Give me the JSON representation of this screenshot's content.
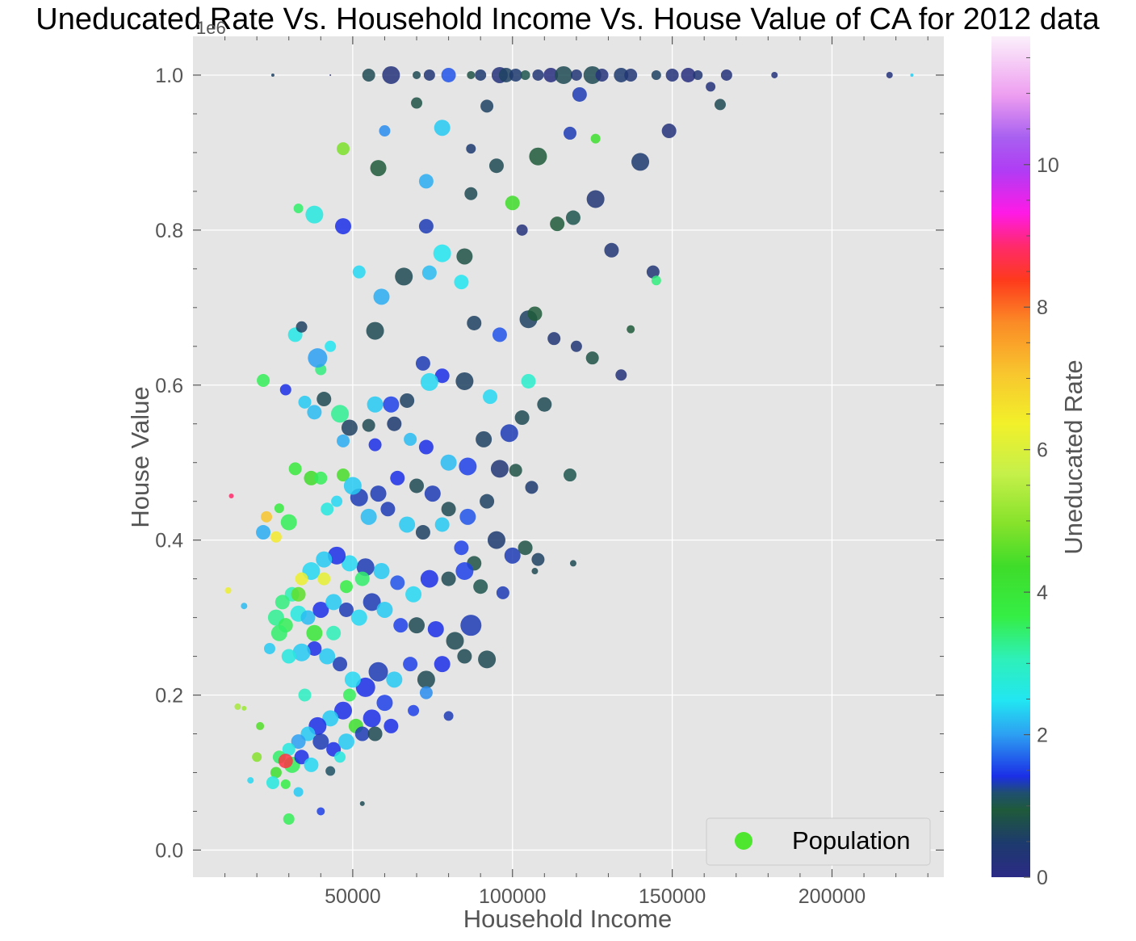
{
  "chart_data": {
    "type": "scatter",
    "title": "Uneducated Rate Vs. Household Income Vs. House Value of CA for 2012 data",
    "xlabel": "Household Income",
    "ylabel": "House Value",
    "y_offset_label": "1e6",
    "xlim": [
      0,
      235000
    ],
    "ylim": [
      -0.035,
      1.05
    ],
    "x_ticks": [
      50000,
      100000,
      150000,
      200000
    ],
    "x_tick_labels": [
      "50000",
      "100000",
      "150000",
      "200000"
    ],
    "y_ticks": [
      0.0,
      0.2,
      0.4,
      0.6,
      0.8,
      1.0
    ],
    "y_tick_labels": [
      "0.0",
      "0.2",
      "0.4",
      "0.6",
      "0.8",
      "1.0"
    ],
    "grid": true,
    "legend": {
      "position": "bottom-right",
      "entries": [
        "Population"
      ],
      "marker_color": "#4ee62f"
    },
    "colorbar": {
      "label": "Uneducated Rate",
      "range": [
        0,
        11.8
      ],
      "ticks": [
        0,
        2,
        4,
        6,
        8,
        10
      ],
      "tick_labels": [
        "0",
        "2",
        "4",
        "6",
        "8",
        "10"
      ],
      "colormap": "gist_ncar"
    },
    "encoding": {
      "x": "Household Income",
      "y": "House Value",
      "color": "Uneducated Rate",
      "size": "Population"
    },
    "points_note": "approximately 1500 points; representative sample listed",
    "points": [
      [
        25000,
        1.0,
        0.5,
        2
      ],
      [
        43000,
        1.0,
        0.1,
        1
      ],
      [
        55000,
        1.0,
        0.6,
        8
      ],
      [
        62000,
        1.0,
        0.2,
        11
      ],
      [
        70000,
        1.0,
        0.6,
        5
      ],
      [
        74000,
        1.0,
        0.3,
        7
      ],
      [
        80000,
        1.0,
        1.5,
        9
      ],
      [
        87000,
        1.0,
        0.7,
        5
      ],
      [
        90000,
        1.0,
        0.4,
        7
      ],
      [
        96000,
        1.0,
        0.2,
        10
      ],
      [
        98000,
        1.0,
        0.5,
        9
      ],
      [
        101000,
        1.0,
        0.4,
        8
      ],
      [
        104000,
        1.0,
        0.9,
        6
      ],
      [
        108000,
        1.0,
        0.3,
        7
      ],
      [
        112000,
        1.0,
        0.1,
        9
      ],
      [
        116000,
        1.0,
        0.6,
        11
      ],
      [
        120000,
        1.0,
        0.3,
        7
      ],
      [
        125000,
        1.0,
        0.6,
        11
      ],
      [
        128000,
        1.0,
        0.2,
        8
      ],
      [
        134000,
        1.0,
        0.4,
        9
      ],
      [
        137000,
        1.0,
        0.3,
        8
      ],
      [
        145000,
        1.0,
        0.5,
        6
      ],
      [
        150000,
        1.0,
        0.2,
        8
      ],
      [
        155000,
        1.0,
        0.1,
        9
      ],
      [
        158000,
        1.0,
        0.3,
        6
      ],
      [
        167000,
        1.0,
        0.2,
        7
      ],
      [
        182000,
        1.0,
        0.2,
        4
      ],
      [
        218000,
        1.0,
        0.2,
        4
      ],
      [
        225000,
        1.0,
        2.2,
        2
      ],
      [
        58000,
        0.88,
        0.8,
        10
      ],
      [
        47000,
        0.905,
        4.9,
        8
      ],
      [
        60000,
        0.928,
        1.8,
        7
      ],
      [
        73000,
        0.863,
        2.0,
        9
      ],
      [
        78000,
        0.932,
        2.2,
        10
      ],
      [
        87000,
        0.905,
        0.4,
        6
      ],
      [
        95000,
        0.883,
        0.6,
        9
      ],
      [
        108000,
        0.895,
        0.8,
        11
      ],
      [
        118000,
        0.925,
        1.2,
        8
      ],
      [
        126000,
        0.918,
        4.2,
        6
      ],
      [
        140000,
        0.888,
        0.4,
        11
      ],
      [
        149000,
        0.928,
        0.2,
        9
      ],
      [
        165000,
        0.962,
        0.6,
        7
      ],
      [
        162000,
        0.985,
        0.2,
        6
      ],
      [
        121000,
        0.975,
        1.2,
        9
      ],
      [
        92000,
        0.96,
        0.5,
        8
      ],
      [
        70000,
        0.964,
        0.7,
        7
      ],
      [
        33000,
        0.828,
        3.4,
        6
      ],
      [
        38000,
        0.82,
        2.6,
        11
      ],
      [
        47000,
        0.805,
        1.3,
        10
      ],
      [
        73000,
        0.805,
        1.2,
        9
      ],
      [
        100000,
        0.835,
        4.3,
        9
      ],
      [
        87000,
        0.847,
        0.6,
        8
      ],
      [
        119000,
        0.816,
        0.9,
        9
      ],
      [
        126000,
        0.84,
        0.3,
        11
      ],
      [
        131000,
        0.774,
        0.3,
        9
      ],
      [
        144000,
        0.746,
        0.3,
        8
      ],
      [
        145000,
        0.735,
        3.3,
        6
      ],
      [
        114000,
        0.808,
        0.8,
        9
      ],
      [
        103000,
        0.8,
        0.2,
        7
      ],
      [
        78000,
        0.77,
        2.4,
        11
      ],
      [
        85000,
        0.766,
        0.7,
        10
      ],
      [
        32000,
        0.665,
        2.5,
        9
      ],
      [
        34000,
        0.675,
        0.5,
        7
      ],
      [
        40000,
        0.62,
        3.3,
        7
      ],
      [
        43000,
        0.65,
        2.4,
        7
      ],
      [
        39000,
        0.635,
        1.9,
        12
      ],
      [
        22000,
        0.606,
        3.5,
        8
      ],
      [
        29000,
        0.594,
        1.3,
        7
      ],
      [
        35000,
        0.578,
        2.2,
        8
      ],
      [
        38000,
        0.565,
        2.1,
        9
      ],
      [
        41000,
        0.582,
        0.6,
        9
      ],
      [
        46000,
        0.563,
        3.2,
        11
      ],
      [
        47000,
        0.528,
        2.0,
        8
      ],
      [
        59000,
        0.714,
        2.0,
        10
      ],
      [
        57000,
        0.67,
        0.6,
        11
      ],
      [
        52000,
        0.746,
        2.3,
        8
      ],
      [
        66000,
        0.74,
        0.6,
        11
      ],
      [
        74000,
        0.745,
        2.1,
        9
      ],
      [
        84000,
        0.733,
        2.4,
        9
      ],
      [
        88000,
        0.68,
        0.5,
        9
      ],
      [
        96000,
        0.665,
        1.5,
        9
      ],
      [
        105000,
        0.685,
        0.5,
        11
      ],
      [
        107000,
        0.692,
        0.8,
        9
      ],
      [
        113000,
        0.66,
        0.3,
        8
      ],
      [
        120000,
        0.65,
        0.3,
        7
      ],
      [
        125000,
        0.635,
        0.7,
        8
      ],
      [
        134000,
        0.613,
        0.2,
        7
      ],
      [
        137000,
        0.672,
        0.8,
        5
      ],
      [
        105000,
        0.605,
        2.8,
        9
      ],
      [
        110000,
        0.575,
        0.6,
        9
      ],
      [
        118000,
        0.484,
        0.9,
        8
      ],
      [
        99000,
        0.538,
        1.2,
        11
      ],
      [
        103000,
        0.558,
        0.6,
        9
      ],
      [
        106000,
        0.468,
        0.4,
        8
      ],
      [
        93000,
        0.585,
        2.3,
        9
      ],
      [
        85000,
        0.605,
        0.5,
        11
      ],
      [
        78000,
        0.612,
        1.3,
        9
      ],
      [
        74000,
        0.604,
        2.3,
        11
      ],
      [
        72000,
        0.628,
        1.2,
        9
      ],
      [
        67000,
        0.58,
        0.5,
        9
      ],
      [
        62000,
        0.575,
        1.4,
        10
      ],
      [
        57000,
        0.575,
        2.2,
        10
      ],
      [
        55000,
        0.548,
        0.6,
        8
      ],
      [
        49000,
        0.545,
        0.5,
        10
      ],
      [
        57000,
        0.523,
        1.3,
        8
      ],
      [
        63000,
        0.55,
        0.4,
        9
      ],
      [
        68000,
        0.53,
        2.1,
        8
      ],
      [
        73000,
        0.52,
        1.3,
        9
      ],
      [
        80000,
        0.5,
        2.1,
        10
      ],
      [
        86000,
        0.495,
        1.4,
        11
      ],
      [
        91000,
        0.53,
        0.5,
        10
      ],
      [
        96000,
        0.492,
        0.3,
        11
      ],
      [
        101000,
        0.49,
        0.7,
        8
      ],
      [
        92000,
        0.45,
        0.5,
        9
      ],
      [
        86000,
        0.43,
        1.5,
        10
      ],
      [
        80000,
        0.44,
        0.6,
        9
      ],
      [
        75000,
        0.46,
        1.2,
        10
      ],
      [
        70000,
        0.47,
        0.6,
        9
      ],
      [
        64000,
        0.48,
        1.3,
        9
      ],
      [
        58000,
        0.46,
        1.2,
        10
      ],
      [
        52000,
        0.455,
        1.2,
        11
      ],
      [
        47000,
        0.484,
        4.4,
        8
      ],
      [
        50000,
        0.47,
        2.2,
        11
      ],
      [
        55000,
        0.43,
        2.1,
        10
      ],
      [
        61000,
        0.44,
        1.2,
        9
      ],
      [
        67000,
        0.42,
        2.2,
        10
      ],
      [
        72000,
        0.41,
        0.5,
        9
      ],
      [
        78000,
        0.42,
        2.2,
        9
      ],
      [
        84000,
        0.39,
        1.4,
        9
      ],
      [
        88000,
        0.37,
        0.7,
        9
      ],
      [
        95000,
        0.4,
        0.4,
        11
      ],
      [
        100000,
        0.38,
        1.2,
        10
      ],
      [
        104000,
        0.39,
        0.7,
        9
      ],
      [
        108000,
        0.375,
        0.5,
        8
      ],
      [
        119000,
        0.37,
        0.6,
        4
      ],
      [
        107000,
        0.36,
        0.6,
        4
      ],
      [
        97000,
        0.332,
        1.2,
        8
      ],
      [
        90000,
        0.34,
        0.9,
        9
      ],
      [
        85000,
        0.36,
        1.4,
        11
      ],
      [
        80000,
        0.35,
        0.6,
        9
      ],
      [
        74000,
        0.35,
        1.3,
        11
      ],
      [
        69000,
        0.33,
        2.3,
        10
      ],
      [
        64000,
        0.345,
        1.5,
        9
      ],
      [
        59000,
        0.36,
        2.2,
        10
      ],
      [
        54000,
        0.365,
        1.2,
        11
      ],
      [
        49000,
        0.37,
        2.3,
        10
      ],
      [
        45000,
        0.38,
        1.3,
        11
      ],
      [
        41000,
        0.375,
        2.2,
        10
      ],
      [
        37000,
        0.36,
        2.3,
        11
      ],
      [
        34000,
        0.35,
        6.2,
        8
      ],
      [
        31000,
        0.33,
        3.0,
        9
      ],
      [
        28000,
        0.32,
        3.3,
        9
      ],
      [
        26000,
        0.3,
        3.2,
        10
      ],
      [
        29000,
        0.29,
        3.5,
        9
      ],
      [
        33000,
        0.305,
        2.6,
        10
      ],
      [
        36000,
        0.3,
        2.1,
        9
      ],
      [
        40000,
        0.31,
        1.3,
        10
      ],
      [
        44000,
        0.32,
        2.2,
        10
      ],
      [
        48000,
        0.31,
        1.2,
        9
      ],
      [
        52000,
        0.3,
        2.3,
        10
      ],
      [
        56000,
        0.32,
        1.2,
        11
      ],
      [
        60000,
        0.31,
        2.2,
        10
      ],
      [
        65000,
        0.29,
        1.4,
        9
      ],
      [
        70000,
        0.29,
        0.6,
        10
      ],
      [
        76000,
        0.285,
        1.3,
        10
      ],
      [
        82000,
        0.27,
        0.6,
        11
      ],
      [
        87000,
        0.29,
        1.2,
        13
      ],
      [
        92000,
        0.246,
        0.6,
        11
      ],
      [
        85000,
        0.25,
        0.6,
        9
      ],
      [
        78000,
        0.24,
        1.3,
        10
      ],
      [
        73000,
        0.22,
        0.6,
        11
      ],
      [
        68000,
        0.24,
        1.4,
        9
      ],
      [
        63000,
        0.22,
        2.2,
        10
      ],
      [
        58000,
        0.23,
        1.2,
        12
      ],
      [
        54000,
        0.21,
        1.3,
        12
      ],
      [
        50000,
        0.22,
        2.3,
        10
      ],
      [
        46000,
        0.24,
        1.2,
        9
      ],
      [
        42000,
        0.25,
        2.2,
        10
      ],
      [
        38000,
        0.26,
        1.3,
        9
      ],
      [
        34000,
        0.255,
        2.2,
        11
      ],
      [
        30000,
        0.25,
        2.6,
        9
      ],
      [
        27000,
        0.28,
        3.4,
        10
      ],
      [
        24000,
        0.26,
        2.2,
        7
      ],
      [
        73000,
        0.203,
        1.8,
        8
      ],
      [
        69000,
        0.18,
        1.4,
        7
      ],
      [
        80000,
        0.173,
        1.2,
        6
      ],
      [
        60000,
        0.19,
        1.4,
        10
      ],
      [
        56000,
        0.17,
        1.3,
        11
      ],
      [
        51000,
        0.16,
        4.2,
        9
      ],
      [
        47000,
        0.18,
        1.3,
        11
      ],
      [
        43000,
        0.17,
        2.2,
        10
      ],
      [
        39000,
        0.16,
        1.3,
        11
      ],
      [
        36000,
        0.15,
        2.2,
        9
      ],
      [
        33000,
        0.14,
        1.9,
        9
      ],
      [
        30000,
        0.13,
        2.6,
        8
      ],
      [
        27000,
        0.12,
        3.4,
        8
      ],
      [
        31000,
        0.11,
        3.5,
        10
      ],
      [
        34000,
        0.12,
        1.3,
        9
      ],
      [
        37000,
        0.11,
        2.3,
        9
      ],
      [
        40000,
        0.14,
        1.2,
        10
      ],
      [
        44000,
        0.13,
        1.3,
        9
      ],
      [
        48000,
        0.14,
        2.2,
        10
      ],
      [
        53000,
        0.15,
        1.2,
        9
      ],
      [
        57000,
        0.15,
        0.6,
        9
      ],
      [
        62000,
        0.16,
        1.3,
        9
      ],
      [
        29000,
        0.115,
        8.6,
        9
      ],
      [
        26000,
        0.1,
        4.2,
        7
      ],
      [
        29000,
        0.085,
        3.6,
        6
      ],
      [
        33000,
        0.075,
        2.2,
        6
      ],
      [
        30000,
        0.04,
        3.5,
        7
      ],
      [
        25000,
        0.087,
        2.6,
        8
      ],
      [
        20000,
        0.12,
        5.0,
        6
      ],
      [
        18000,
        0.09,
        2.3,
        4
      ],
      [
        21000,
        0.16,
        4.5,
        5
      ],
      [
        14000,
        0.185,
        5.3,
        4
      ],
      [
        16000,
        0.183,
        5.2,
        3
      ],
      [
        23000,
        0.43,
        7.0,
        7
      ],
      [
        22000,
        0.41,
        2.0,
        9
      ],
      [
        26000,
        0.404,
        6.4,
        7
      ],
      [
        30000,
        0.423,
        3.5,
        10
      ],
      [
        27000,
        0.441,
        3.7,
        6
      ],
      [
        12000,
        0.457,
        8.8,
        3
      ],
      [
        11000,
        0.335,
        6.2,
        4
      ],
      [
        16000,
        0.315,
        2.1,
        4
      ],
      [
        32000,
        0.492,
        3.8,
        8
      ],
      [
        37000,
        0.48,
        4.3,
        9
      ],
      [
        40000,
        0.48,
        3.5,
        8
      ],
      [
        42000,
        0.44,
        2.6,
        8
      ],
      [
        45000,
        0.45,
        2.3,
        7
      ],
      [
        33000,
        0.33,
        4.6,
        9
      ],
      [
        41000,
        0.35,
        6.1,
        8
      ],
      [
        48000,
        0.34,
        3.6,
        8
      ],
      [
        53000,
        0.35,
        3.4,
        9
      ],
      [
        38000,
        0.28,
        3.9,
        10
      ],
      [
        44000,
        0.28,
        3.0,
        9
      ],
      [
        49000,
        0.2,
        3.5,
        8
      ],
      [
        35000,
        0.2,
        2.9,
        8
      ],
      [
        46000,
        0.12,
        2.6,
        7
      ],
      [
        43000,
        0.102,
        1.0,
        6
      ],
      [
        40000,
        0.05,
        1.4,
        5
      ],
      [
        53000,
        0.06,
        0.6,
        3
      ]
    ]
  }
}
